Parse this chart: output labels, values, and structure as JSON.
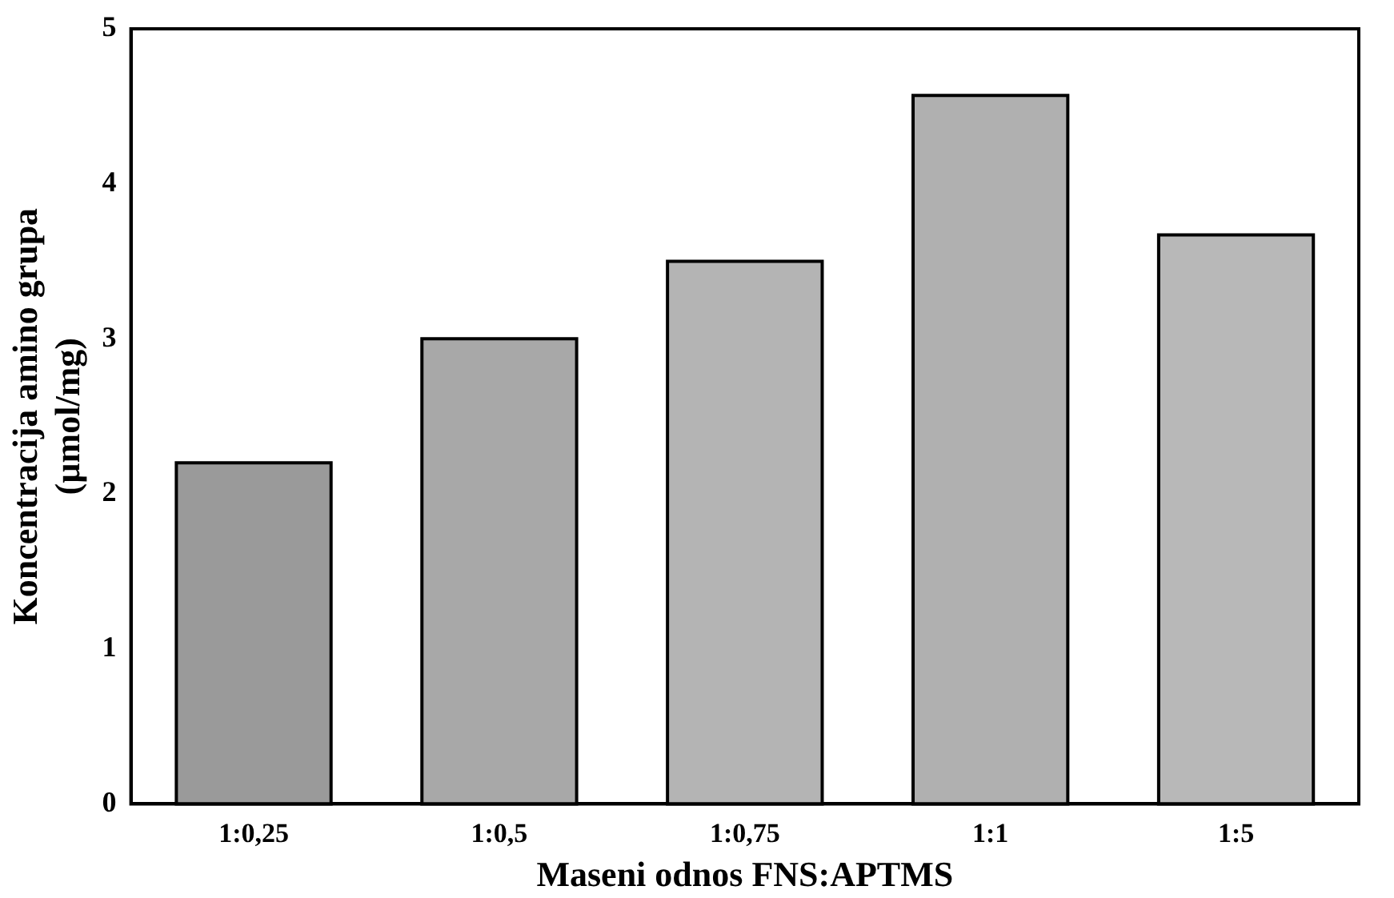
{
  "chart_data": {
    "type": "bar",
    "xlabel": "Maseni odnos FNS:APTMS",
    "ylabel": "Koncentracija amino grupa\n(µmol/mg)",
    "categories": [
      "1:0,25",
      "1:0,5",
      "1:0,75",
      "1:1",
      "1:5"
    ],
    "values": [
      2.2,
      3.0,
      3.5,
      4.57,
      3.67
    ],
    "colors": [
      "#9a9a9a",
      "#a8a8a8",
      "#b4b4b4",
      "#b0b0b0",
      "#b8b8b8"
    ],
    "ylim": [
      0,
      5
    ],
    "yticks": [
      0,
      1,
      2,
      3,
      4,
      5
    ],
    "grid": false,
    "legend": false
  }
}
